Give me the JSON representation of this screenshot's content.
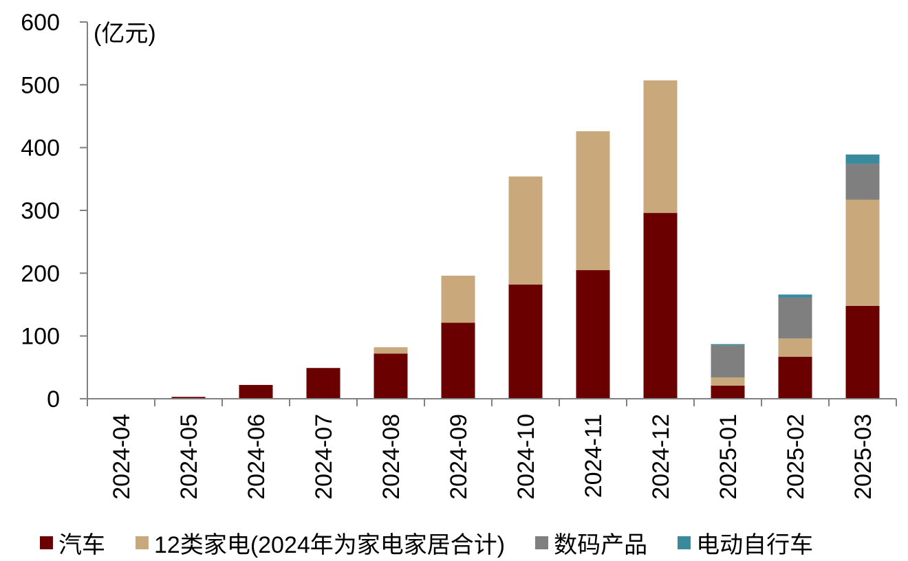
{
  "chart_data": {
    "type": "bar",
    "stacked": true,
    "unit_label": "(亿元)",
    "categories": [
      "2024-04",
      "2024-05",
      "2024-06",
      "2024-07",
      "2024-08",
      "2024-09",
      "2024-10",
      "2024-11",
      "2024-12",
      "2025-01",
      "2025-02",
      "2025-03"
    ],
    "series": [
      {
        "name": "汽车",
        "color": "#6b0000",
        "values": [
          0,
          3,
          22,
          49,
          72,
          121,
          182,
          205,
          296,
          21,
          67,
          148
        ]
      },
      {
        "name": "12类家电(2024年为家电家居合计)",
        "color": "#c9a97b",
        "values": [
          0,
          0,
          0,
          0,
          10,
          75,
          172,
          221,
          211,
          13,
          29,
          169
        ]
      },
      {
        "name": "数码产品",
        "color": "#7f7f7f",
        "values": [
          0,
          0,
          0,
          0,
          0,
          0,
          0,
          0,
          0,
          51,
          65,
          57
        ]
      },
      {
        "name": "电动自行车",
        "color": "#3a8a9e",
        "values": [
          0,
          0,
          0,
          0,
          0,
          0,
          0,
          0,
          0,
          2,
          5,
          15
        ]
      }
    ],
    "ylim": [
      0,
      600
    ],
    "yticks": [
      0,
      100,
      200,
      300,
      400,
      500,
      600
    ],
    "legend_position": "bottom",
    "grid": false
  }
}
